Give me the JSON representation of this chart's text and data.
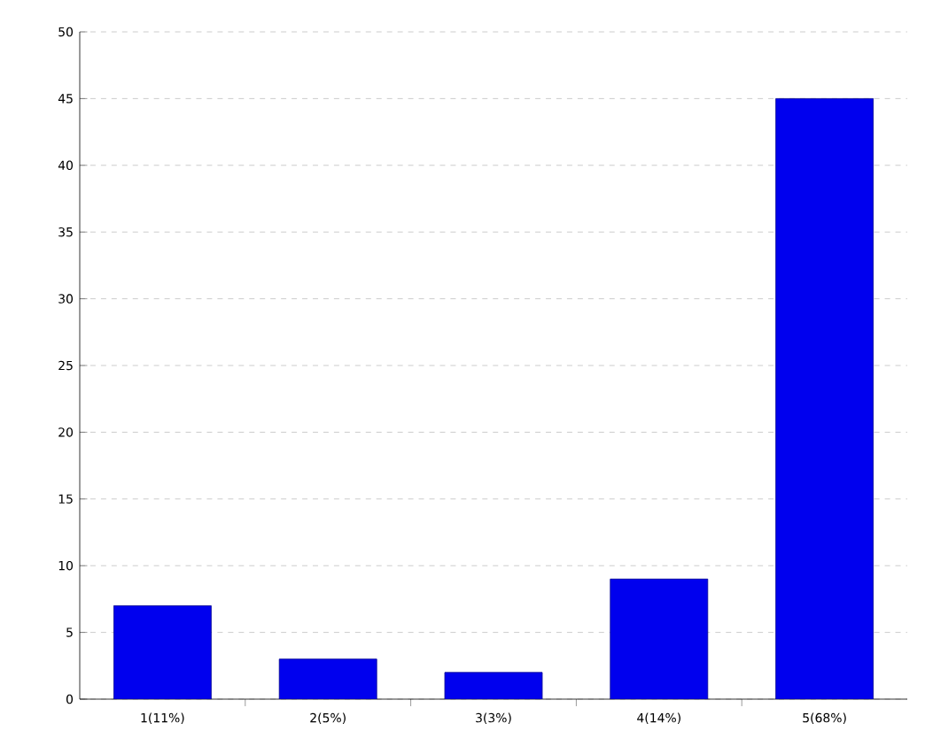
{
  "chart_data": {
    "type": "bar",
    "categories": [
      "1(11%)",
      "2(5%)",
      "3(3%)",
      "4(14%)",
      "5(68%)"
    ],
    "values": [
      7,
      3,
      2,
      9,
      45
    ],
    "color": "#0000ee",
    "ylim": [
      0,
      50
    ],
    "yticks": [
      0,
      5,
      10,
      15,
      20,
      25,
      30,
      35,
      40,
      45,
      50
    ],
    "grid": "y"
  }
}
